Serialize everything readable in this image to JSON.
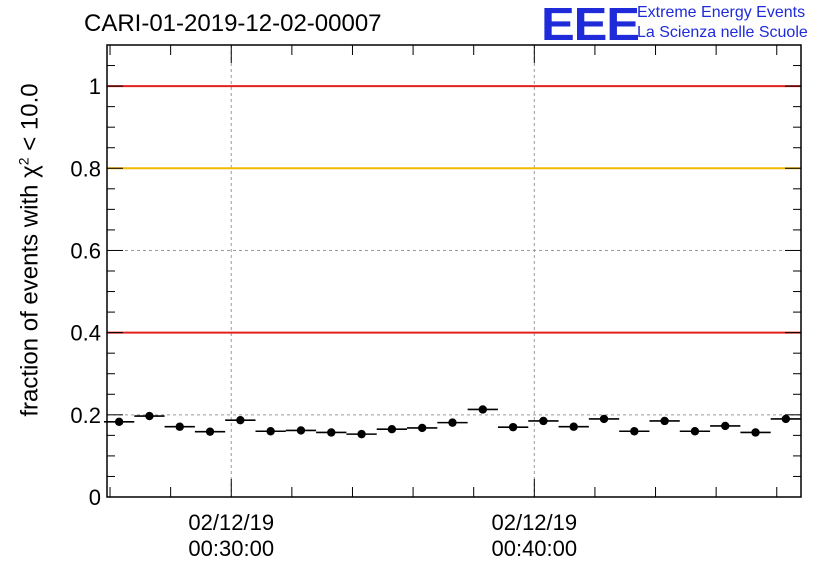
{
  "header": {
    "run_title": "CARI-01-2019-12-02-00007"
  },
  "logo": {
    "mark": "EEE",
    "line1": "Extreme Energy Events",
    "line2": "La Scienza nelle Scuole"
  },
  "chart_data": {
    "type": "scatter",
    "ylabel_prefix": "fraction of events with χ",
    "ylabel_sup": "2",
    "ylabel_suffix": " < 10.0",
    "xlabel": "",
    "ylim": [
      0,
      1.1
    ],
    "yticks": [
      0,
      0.2,
      0.4,
      0.6,
      0.8,
      1
    ],
    "ytick_labels": [
      "0",
      "0.2",
      "0.4",
      "0.6",
      "0.8",
      "1"
    ],
    "xticks": [
      {
        "minutes": 30,
        "date": "02/12/19",
        "time": "00:30:00"
      },
      {
        "minutes": 40,
        "date": "02/12/19",
        "time": "00:40:00"
      }
    ],
    "xlim_minutes": [
      25.9,
      48.8
    ],
    "grid": true,
    "reference_lines": [
      {
        "value": 1.0,
        "color": "#e3201b"
      },
      {
        "value": 0.8,
        "color": "#f5b800"
      },
      {
        "value": 0.4,
        "color": "#e3201b"
      }
    ],
    "series": [
      {
        "color": "#000000",
        "x_minutes": [
          26.3,
          27.3,
          28.3,
          29.3,
          30.3,
          31.3,
          32.3,
          33.3,
          34.3,
          35.3,
          36.3,
          37.3,
          38.3,
          39.3,
          40.3,
          41.3,
          42.3,
          43.3,
          44.3,
          45.3,
          46.3,
          47.3,
          48.3
        ],
        "x_halfwidth_minutes": 0.5,
        "y": [
          0.183,
          0.197,
          0.171,
          0.159,
          0.187,
          0.16,
          0.162,
          0.157,
          0.153,
          0.165,
          0.168,
          0.181,
          0.213,
          0.17,
          0.185,
          0.171,
          0.19,
          0.16,
          0.185,
          0.16,
          0.173,
          0.157,
          0.19
        ],
        "yerr": [
          0.007,
          0.007,
          0.007,
          0.007,
          0.007,
          0.007,
          0.007,
          0.007,
          0.007,
          0.007,
          0.007,
          0.007,
          0.008,
          0.007,
          0.007,
          0.007,
          0.007,
          0.007,
          0.007,
          0.007,
          0.007,
          0.007,
          0.007
        ]
      }
    ]
  }
}
